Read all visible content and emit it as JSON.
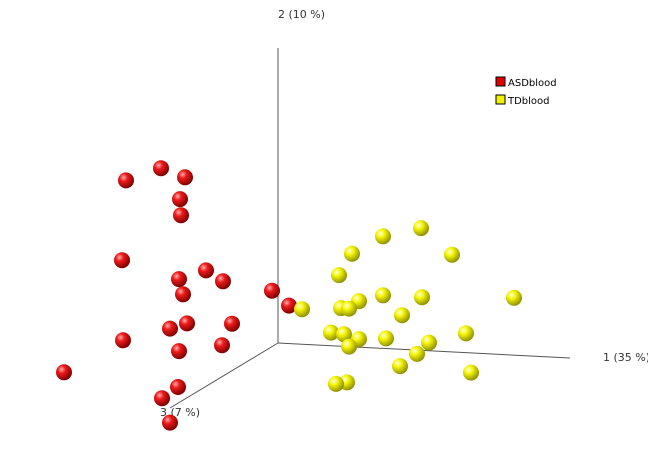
{
  "chart_data": {
    "type": "scatter",
    "projection": "3d",
    "axes": [
      {
        "label": "1 (35 %)"
      },
      {
        "label": "2 (10 %)"
      },
      {
        "label": "3 (7 %)"
      }
    ],
    "grid": false,
    "legend_position": "top-right",
    "series": [
      {
        "name": "ASDblood",
        "color": "#e00000",
        "points": [
          [
            -1.52,
            1.55,
            0
          ],
          [
            -1.17,
            1.69,
            0
          ],
          [
            -0.93,
            1.61,
            0
          ],
          [
            -0.98,
            1.39,
            0
          ],
          [
            -0.97,
            1.23,
            0
          ],
          [
            -1.56,
            0.75,
            0
          ],
          [
            -0.99,
            0.59,
            0
          ],
          [
            -0.72,
            0.69,
            0
          ],
          [
            -0.55,
            0.59,
            0
          ],
          [
            -0.95,
            0.44,
            0
          ],
          [
            -0.06,
            0.52,
            0
          ],
          [
            0.11,
            0.38,
            0
          ],
          [
            -1.55,
            -0.05,
            0
          ],
          [
            -0.46,
            0.17,
            0
          ],
          [
            -0.91,
            0.15,
            0
          ],
          [
            -1.08,
            0.09,
            0
          ],
          [
            -0.56,
            -0.05,
            0
          ],
          [
            -0.99,
            -0.13,
            0
          ],
          [
            -2.14,
            -0.4,
            0
          ],
          [
            -1.0,
            -0.49,
            0
          ],
          [
            -1.16,
            -0.61,
            0
          ],
          [
            -1.08,
            -0.85,
            0
          ]
        ]
      },
      {
        "name": "TDblood",
        "color": "#f0f000",
        "points": [
          [
            1.05,
            1.12,
            0
          ],
          [
            1.43,
            1.22,
            0
          ],
          [
            1.74,
            0.97,
            0
          ],
          [
            0.74,
            0.93,
            0
          ],
          [
            0.61,
            0.71,
            0
          ],
          [
            2.36,
            0.57,
            0
          ],
          [
            1.05,
            0.53,
            0
          ],
          [
            1.44,
            0.53,
            0
          ],
          [
            0.81,
            0.46,
            0
          ],
          [
            0.63,
            0.38,
            0
          ],
          [
            0.71,
            0.38,
            0
          ],
          [
            1.24,
            0.34,
            0
          ],
          [
            0.24,
            0.35,
            0
          ],
          [
            1.88,
            0.19,
            0
          ],
          [
            0.53,
            0.13,
            0
          ],
          [
            0.66,
            0.12,
            0
          ],
          [
            0.81,
            0.08,
            0
          ],
          [
            1.08,
            0.1,
            0
          ],
          [
            0.71,
            0.0,
            0
          ],
          [
            1.51,
            0.08,
            0
          ],
          [
            1.39,
            -0.04,
            0
          ],
          [
            1.22,
            -0.17,
            0
          ],
          [
            1.93,
            -0.2,
            0
          ],
          [
            0.69,
            -0.36,
            0
          ],
          [
            0.58,
            -0.38,
            0
          ]
        ]
      }
    ]
  }
}
